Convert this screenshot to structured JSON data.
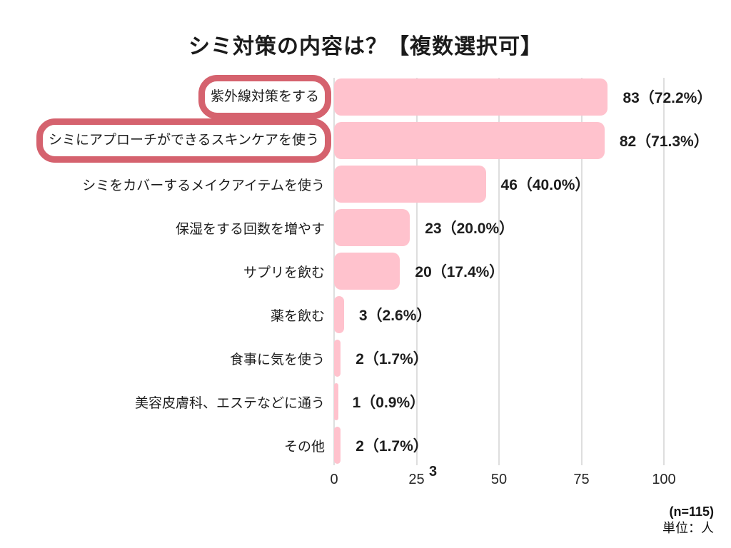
{
  "chart_data": {
    "type": "bar",
    "orientation": "horizontal",
    "title": "シミ対策の内容は？【複数選択可】",
    "categories": [
      "紫外線対策をする",
      "シミにアプローチができるスキンケアを使う",
      "シミをカバーするメイクアイテムを使う",
      "保湿をする回数を増やす",
      "サプリを飲む",
      "薬を飲む",
      "食事に気を使う",
      "美容皮膚科、エステなどに通う",
      "その他"
    ],
    "values": [
      83,
      82,
      46,
      23,
      20,
      3,
      2,
      1,
      2
    ],
    "percents": [
      72.2,
      71.3,
      40.0,
      20.0,
      17.4,
      2.6,
      1.7,
      0.9,
      1.7
    ],
    "value_labels": [
      "83（72.2%）",
      "82（71.3%）",
      "46（40.0%）",
      "23（20.0%）",
      "20（17.4%）",
      "3（2.6%）",
      "2（1.7%）",
      "1（0.9%）",
      "2（1.7%）"
    ],
    "highlighted_indices": [
      0,
      1
    ],
    "xlim": [
      0,
      100
    ],
    "x_ticks": [
      0,
      25,
      50,
      75,
      100
    ],
    "grid": "vertical",
    "legend": "none",
    "bar_color": "#ffc2cd",
    "highlight_border_color": "#d5626e",
    "stray_annotation": "3"
  },
  "footnote": {
    "sample_size": "(n=115)",
    "unit": "単位：人"
  }
}
